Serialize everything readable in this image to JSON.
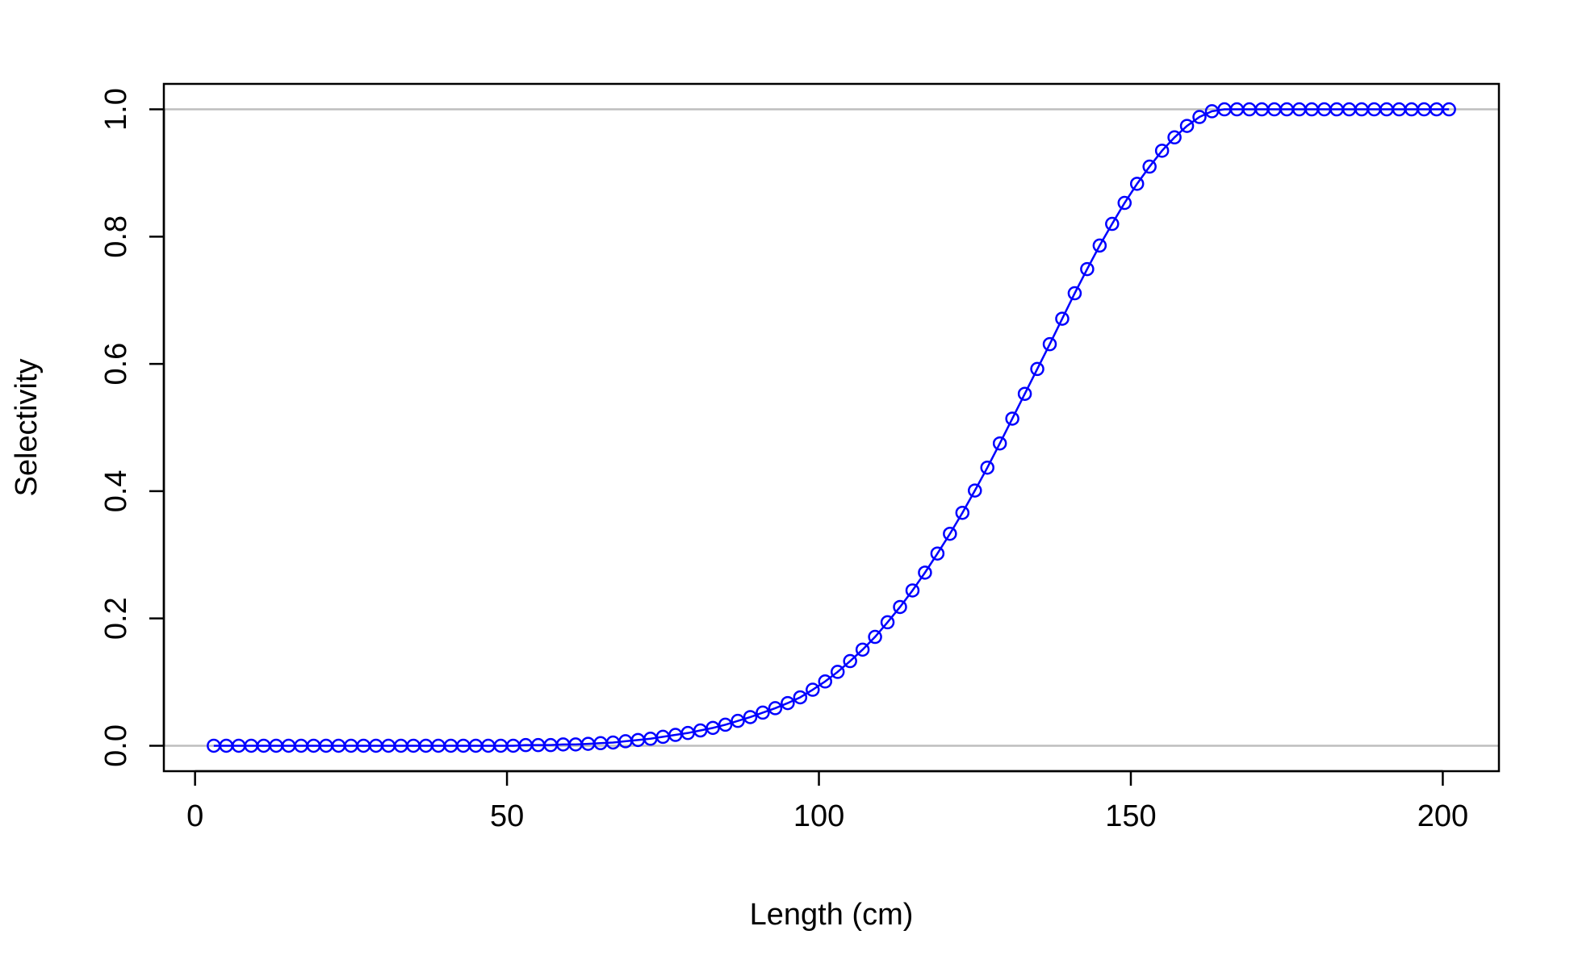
{
  "chart_data": {
    "type": "line",
    "title": "",
    "xlabel": "Length (cm)",
    "ylabel": "Selectivity",
    "xlim": [
      -5,
      209
    ],
    "ylim": [
      -0.04,
      1.04
    ],
    "x_ticks": [
      0,
      50,
      100,
      150,
      200
    ],
    "x_tick_labels": [
      "0",
      "50",
      "100",
      "150",
      "200"
    ],
    "y_ticks": [
      0.0,
      0.2,
      0.4,
      0.6,
      0.8,
      1.0
    ],
    "y_tick_labels": [
      "0.0",
      "0.2",
      "0.4",
      "0.6",
      "0.8",
      "1.0"
    ],
    "reference_lines_y": [
      0,
      1
    ],
    "reference_line_color": "#bebebe",
    "series_color": "#0000ff",
    "marker": "open-circle",
    "line": true,
    "grid": false,
    "series": [
      {
        "x": [
          3,
          5,
          7,
          9,
          11,
          13,
          15,
          17,
          19,
          21,
          23,
          25,
          27,
          29,
          31,
          33,
          35,
          37,
          39,
          41,
          43,
          45,
          47,
          49,
          51,
          53,
          55,
          57,
          59,
          61,
          63,
          65,
          67,
          69,
          71,
          73,
          75,
          77,
          79,
          81,
          83,
          85,
          87,
          89,
          91,
          93,
          95,
          97,
          99,
          101,
          103,
          105,
          107,
          109,
          111,
          113,
          115,
          117,
          119,
          121,
          123,
          125,
          127,
          129,
          131,
          133,
          135,
          137,
          139,
          141,
          143,
          145,
          147,
          149,
          151,
          153,
          155,
          157,
          159,
          161,
          163,
          165,
          167,
          169,
          171,
          173,
          175,
          177,
          179,
          181,
          183,
          185,
          187,
          189,
          191,
          193,
          195,
          197,
          199,
          201
        ],
        "y": [
          0.0,
          0.0,
          0.0,
          0.0,
          0.0,
          0.0,
          0.0,
          0.0,
          0.0,
          0.0,
          0.0,
          0.0,
          0.0,
          0.0,
          0.0,
          0.0,
          0.0,
          0.0,
          0.0,
          0.0,
          0.0,
          0.0,
          0.0,
          0.0,
          0.0,
          0.001,
          0.001,
          0.001,
          0.002,
          0.002,
          0.003,
          0.004,
          0.005,
          0.007,
          0.009,
          0.011,
          0.014,
          0.017,
          0.02,
          0.024,
          0.028,
          0.033,
          0.039,
          0.045,
          0.052,
          0.059,
          0.067,
          0.076,
          0.088,
          0.101,
          0.116,
          0.133,
          0.151,
          0.171,
          0.194,
          0.218,
          0.244,
          0.272,
          0.302,
          0.333,
          0.366,
          0.401,
          0.437,
          0.475,
          0.514,
          0.553,
          0.592,
          0.631,
          0.671,
          0.711,
          0.749,
          0.786,
          0.82,
          0.853,
          0.883,
          0.91,
          0.935,
          0.956,
          0.974,
          0.988,
          0.997,
          1.0,
          1.0,
          1.0,
          1.0,
          1.0,
          1.0,
          1.0,
          1.0,
          1.0,
          1.0,
          1.0,
          1.0,
          1.0,
          1.0,
          1.0,
          1.0,
          1.0,
          1.0,
          1.0
        ]
      }
    ]
  }
}
